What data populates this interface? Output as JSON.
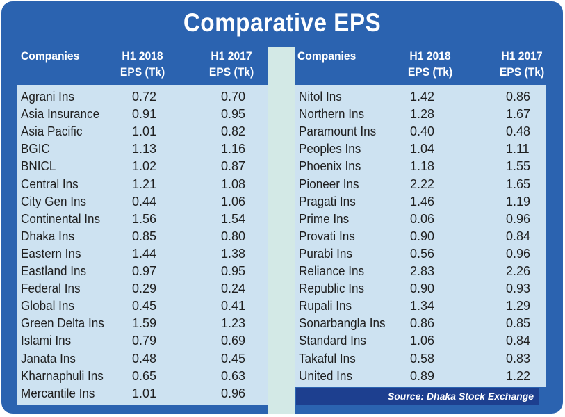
{
  "title": "Comparative EPS",
  "headers": {
    "companies": "Companies",
    "h1_2018_line1": "H1 2018",
    "h1_2018_line2": "EPS (Tk)",
    "h1_2017_line1": "H1 2017",
    "h1_2017_line2": "EPS (Tk)"
  },
  "source": "Source: Dhaka Stock Exchange",
  "colors": {
    "frame": "#2b63b0",
    "panel": "#cde2f1",
    "gap": "#d3e9e6",
    "source_bar": "#1d3f8f"
  },
  "chart_data": {
    "type": "table",
    "title": "Comparative EPS",
    "columns": [
      "Companies",
      "H1 2018 EPS (Tk)",
      "H1 2017 EPS (Tk)"
    ],
    "left_rows": [
      {
        "company": "Agrani Ins",
        "h1_2018": "0.72",
        "h1_2017": "0.70"
      },
      {
        "company": "Asia Insurance",
        "h1_2018": "0.91",
        "h1_2017": "0.95"
      },
      {
        "company": "Asia Pacific",
        "h1_2018": "1.01",
        "h1_2017": "0.82"
      },
      {
        "company": "BGIC",
        "h1_2018": "1.13",
        "h1_2017": "1.16"
      },
      {
        "company": "BNICL",
        "h1_2018": "1.02",
        "h1_2017": "0.87"
      },
      {
        "company": "Central Ins",
        "h1_2018": "1.21",
        "h1_2017": "1.08"
      },
      {
        "company": "City Gen Ins",
        "h1_2018": "0.44",
        "h1_2017": "1.06"
      },
      {
        "company": "Continental Ins",
        "h1_2018": "1.56",
        "h1_2017": "1.54"
      },
      {
        "company": "Dhaka Ins",
        "h1_2018": "0.85",
        "h1_2017": "0.80"
      },
      {
        "company": "Eastern Ins",
        "h1_2018": "1.44",
        "h1_2017": "1.38"
      },
      {
        "company": "Eastland Ins",
        "h1_2018": "0.97",
        "h1_2017": "0.95"
      },
      {
        "company": "Federal Ins",
        "h1_2018": "0.29",
        "h1_2017": "0.24"
      },
      {
        "company": "Global Ins",
        "h1_2018": "0.45",
        "h1_2017": "0.41"
      },
      {
        "company": "Green Delta Ins",
        "h1_2018": "1.59",
        "h1_2017": "1.23"
      },
      {
        "company": "Islami Ins",
        "h1_2018": "0.79",
        "h1_2017": "0.69"
      },
      {
        "company": "Janata Ins",
        "h1_2018": "0.48",
        "h1_2017": "0.45"
      },
      {
        "company": "Kharnaphuli Ins",
        "h1_2018": "0.65",
        "h1_2017": "0.63"
      },
      {
        "company": "Mercantile Ins",
        "h1_2018": "1.01",
        "h1_2017": "0.96"
      }
    ],
    "right_rows": [
      {
        "company": "Nitol Ins",
        "h1_2018": "1.42",
        "h1_2017": "0.86"
      },
      {
        "company": "Northern Ins",
        "h1_2018": "1.28",
        "h1_2017": "1.67"
      },
      {
        "company": "Paramount Ins",
        "h1_2018": "0.40",
        "h1_2017": "0.48"
      },
      {
        "company": "Peoples Ins",
        "h1_2018": "1.04",
        "h1_2017": "1.11"
      },
      {
        "company": "Phoenix Ins",
        "h1_2018": "1.18",
        "h1_2017": "1.55"
      },
      {
        "company": "Pioneer Ins",
        "h1_2018": "2.22",
        "h1_2017": "1.65"
      },
      {
        "company": "Pragati Ins",
        "h1_2018": "1.46",
        "h1_2017": "1.19"
      },
      {
        "company": "Prime Ins",
        "h1_2018": "0.06",
        "h1_2017": "0.96"
      },
      {
        "company": "Provati Ins",
        "h1_2018": "0.90",
        "h1_2017": "0.84"
      },
      {
        "company": "Purabi Ins",
        "h1_2018": "0.56",
        "h1_2017": "0.96"
      },
      {
        "company": "Reliance Ins",
        "h1_2018": "2.83",
        "h1_2017": "2.26"
      },
      {
        "company": "Republic Ins",
        "h1_2018": "0.90",
        "h1_2017": "0.93"
      },
      {
        "company": "Rupali Ins",
        "h1_2018": "1.34",
        "h1_2017": "1.29"
      },
      {
        "company": "Sonarbangla Ins",
        "h1_2018": "0.86",
        "h1_2017": "0.85"
      },
      {
        "company": "Standard Ins",
        "h1_2018": "1.06",
        "h1_2017": "0.84"
      },
      {
        "company": "Takaful Ins",
        "h1_2018": "0.58",
        "h1_2017": "0.83"
      },
      {
        "company": "United Ins",
        "h1_2018": "0.89",
        "h1_2017": "1.22"
      }
    ]
  }
}
